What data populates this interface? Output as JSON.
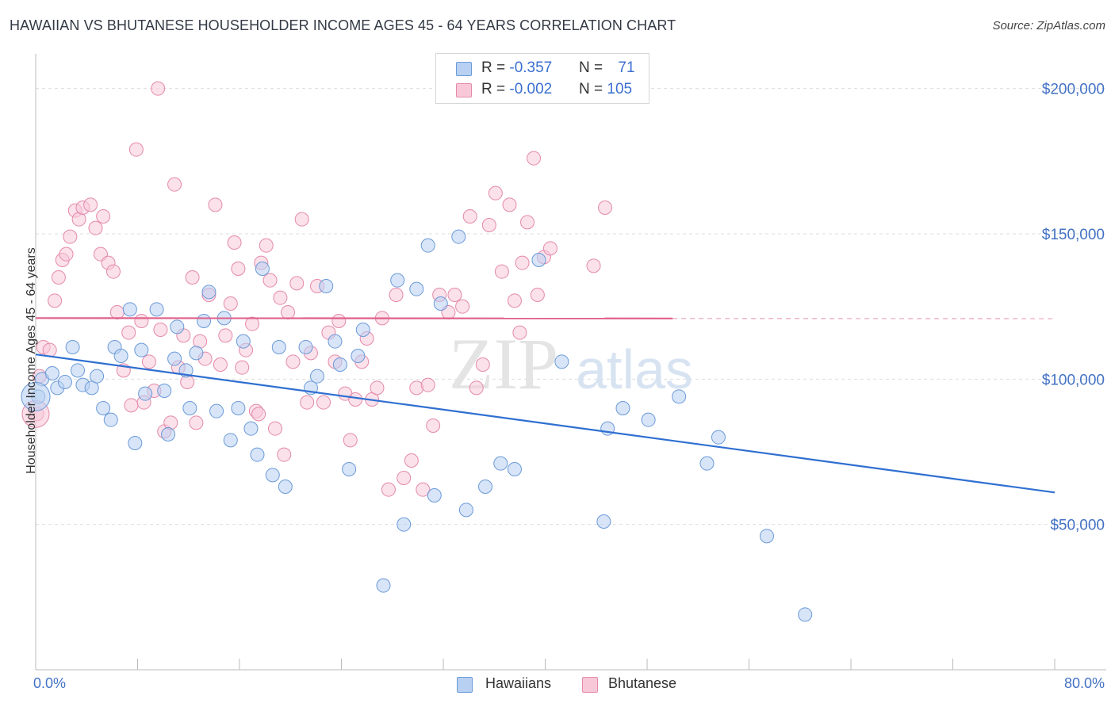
{
  "header": {
    "title": "HAWAIIAN VS BHUTANESE HOUSEHOLDER INCOME AGES 45 - 64 YEARS CORRELATION CHART",
    "source": "Source: ZipAtlas.com"
  },
  "watermark": {
    "zip": "ZIP",
    "atlas": "atlas"
  },
  "legend": {
    "rows": [
      {
        "r_label": "R = ",
        "r_value": "-0.357",
        "n_label": "N = ",
        "n_value": "71"
      },
      {
        "r_label": "R = ",
        "r_value": "-0.002",
        "n_label": "N = ",
        "n_value": "105"
      }
    ]
  },
  "bottom_legend": {
    "hawaiians": "Hawaiians",
    "bhutanese": "Bhutanese"
  },
  "axes": {
    "ylabel": "Householder Income Ages 45 - 64 years",
    "x_min_label": "0.0%",
    "x_max_label": "80.0%",
    "ytick_labels": [
      "$50,000",
      "$100,000",
      "$150,000",
      "$200,000"
    ]
  },
  "colors": {
    "hawaiians_fill": "#b8d0f2",
    "hawaiians_stroke": "#6b9ad8",
    "hawaiians_line": "#2f6fd1",
    "bhutanese_fill": "#f8c8d8",
    "bhutanese_stroke": "#e48aaa",
    "bhutanese_line": "#e0608a",
    "tick_label": "#4472c4",
    "grid": "#dddddd"
  },
  "chart_data": {
    "type": "scatter",
    "title": "HAWAIIAN VS BHUTANESE HOUSEHOLDER INCOME AGES 45 - 64 YEARS CORRELATION CHART",
    "xlabel": "",
    "ylabel": "Householder Income Ages 45 - 64 years",
    "xlim": [
      0,
      80
    ],
    "ylim": [
      0,
      210000
    ],
    "yticks": [
      50000,
      100000,
      150000,
      200000
    ],
    "grid": true,
    "legend_position": "top-center",
    "series": [
      {
        "name": "Hawaiians",
        "r": -0.357,
        "n": 71,
        "trend": {
          "x": [
            0,
            80
          ],
          "y": [
            108500,
            61000
          ],
          "dashed_from_x": null
        },
        "points": [
          [
            0.2,
            94000
          ],
          [
            0.5,
            100000
          ],
          [
            1.3,
            102000
          ],
          [
            1.7,
            97000
          ],
          [
            2.3,
            99000
          ],
          [
            2.9,
            111000
          ],
          [
            3.3,
            103000
          ],
          [
            3.7,
            98000
          ],
          [
            4.4,
            97000
          ],
          [
            4.8,
            101000
          ],
          [
            5.3,
            90000
          ],
          [
            5.9,
            86000
          ],
          [
            6.2,
            111000
          ],
          [
            6.7,
            108000
          ],
          [
            7.4,
            124000
          ],
          [
            7.8,
            78000
          ],
          [
            8.3,
            110000
          ],
          [
            8.6,
            95000
          ],
          [
            9.5,
            124000
          ],
          [
            10.1,
            96000
          ],
          [
            10.4,
            81000
          ],
          [
            10.9,
            107000
          ],
          [
            11.1,
            118000
          ],
          [
            11.8,
            103000
          ],
          [
            12.1,
            90000
          ],
          [
            12.6,
            109000
          ],
          [
            13.2,
            120000
          ],
          [
            13.6,
            130000
          ],
          [
            14.2,
            89000
          ],
          [
            14.8,
            121000
          ],
          [
            15.3,
            79000
          ],
          [
            15.9,
            90000
          ],
          [
            16.3,
            113000
          ],
          [
            16.9,
            83000
          ],
          [
            17.4,
            74000
          ],
          [
            17.8,
            138000
          ],
          [
            18.6,
            67000
          ],
          [
            19.1,
            111000
          ],
          [
            19.6,
            63000
          ],
          [
            21.2,
            111000
          ],
          [
            21.6,
            97000
          ],
          [
            22.1,
            101000
          ],
          [
            22.8,
            132000
          ],
          [
            23.5,
            113000
          ],
          [
            23.9,
            105000
          ],
          [
            24.6,
            69000
          ],
          [
            25.3,
            108000
          ],
          [
            25.7,
            117000
          ],
          [
            27.3,
            29000
          ],
          [
            28.4,
            134000
          ],
          [
            28.9,
            50000
          ],
          [
            29.9,
            131000
          ],
          [
            30.8,
            146000
          ],
          [
            31.3,
            60000
          ],
          [
            31.8,
            126000
          ],
          [
            33.2,
            149000
          ],
          [
            33.8,
            55000
          ],
          [
            35.3,
            63000
          ],
          [
            36.5,
            71000
          ],
          [
            37.6,
            69000
          ],
          [
            39.5,
            141000
          ],
          [
            41.3,
            106000
          ],
          [
            44.6,
            51000
          ],
          [
            44.9,
            83000
          ],
          [
            46.1,
            90000
          ],
          [
            48.1,
            86000
          ],
          [
            50.5,
            94000
          ],
          [
            52.7,
            71000
          ],
          [
            53.6,
            80000
          ],
          [
            57.4,
            46000
          ],
          [
            60.4,
            19000
          ]
        ]
      },
      {
        "name": "Bhutanese",
        "r": -0.002,
        "n": 105,
        "trend": {
          "x": [
            0,
            80
          ],
          "y": [
            121000,
            120800
          ],
          "dashed_from_x": 50
        },
        "points": [
          [
            0.1,
            88000
          ],
          [
            0.3,
            101000
          ],
          [
            0.6,
            111000
          ],
          [
            1.1,
            110000
          ],
          [
            1.5,
            127000
          ],
          [
            1.8,
            135000
          ],
          [
            2.1,
            141000
          ],
          [
            2.4,
            143000
          ],
          [
            2.7,
            149000
          ],
          [
            3.1,
            158000
          ],
          [
            3.4,
            155000
          ],
          [
            3.7,
            159000
          ],
          [
            4.3,
            160000
          ],
          [
            4.7,
            152000
          ],
          [
            5.1,
            143000
          ],
          [
            5.3,
            156000
          ],
          [
            5.7,
            140000
          ],
          [
            6.1,
            137000
          ],
          [
            6.4,
            123000
          ],
          [
            6.9,
            103000
          ],
          [
            7.3,
            116000
          ],
          [
            7.5,
            91000
          ],
          [
            7.9,
            179000
          ],
          [
            8.3,
            120000
          ],
          [
            8.5,
            92000
          ],
          [
            8.9,
            106000
          ],
          [
            9.3,
            96000
          ],
          [
            9.6,
            200000
          ],
          [
            9.8,
            117000
          ],
          [
            10.1,
            82000
          ],
          [
            10.6,
            85000
          ],
          [
            10.9,
            167000
          ],
          [
            11.2,
            104000
          ],
          [
            11.6,
            115000
          ],
          [
            11.9,
            99000
          ],
          [
            12.3,
            135000
          ],
          [
            12.6,
            85000
          ],
          [
            12.9,
            113000
          ],
          [
            13.3,
            107000
          ],
          [
            13.6,
            129000
          ],
          [
            14.1,
            160000
          ],
          [
            14.5,
            105000
          ],
          [
            14.9,
            115000
          ],
          [
            15.3,
            126000
          ],
          [
            15.6,
            147000
          ],
          [
            15.9,
            138000
          ],
          [
            16.2,
            104000
          ],
          [
            16.5,
            110000
          ],
          [
            17.0,
            119000
          ],
          [
            17.3,
            89000
          ],
          [
            17.7,
            140000
          ],
          [
            18.1,
            146000
          ],
          [
            18.4,
            134000
          ],
          [
            18.8,
            83000
          ],
          [
            19.2,
            128000
          ],
          [
            19.5,
            74000
          ],
          [
            19.8,
            123000
          ],
          [
            20.2,
            106000
          ],
          [
            20.5,
            133000
          ],
          [
            20.9,
            155000
          ],
          [
            21.3,
            92000
          ],
          [
            21.6,
            109000
          ],
          [
            22.1,
            132000
          ],
          [
            22.6,
            92000
          ],
          [
            23.0,
            116000
          ],
          [
            23.5,
            106000
          ],
          [
            23.8,
            120000
          ],
          [
            24.3,
            95000
          ],
          [
            24.7,
            79000
          ],
          [
            25.1,
            93000
          ],
          [
            25.6,
            106000
          ],
          [
            26.0,
            114000
          ],
          [
            26.4,
            93000
          ],
          [
            26.8,
            97000
          ],
          [
            27.2,
            121000
          ],
          [
            27.7,
            62000
          ],
          [
            28.3,
            129000
          ],
          [
            28.9,
            66000
          ],
          [
            29.5,
            72000
          ],
          [
            29.9,
            97000
          ],
          [
            30.4,
            62000
          ],
          [
            30.8,
            98000
          ],
          [
            31.2,
            84000
          ],
          [
            31.7,
            129000
          ],
          [
            32.4,
            123000
          ],
          [
            32.9,
            129000
          ],
          [
            33.5,
            125000
          ],
          [
            34.1,
            156000
          ],
          [
            34.6,
            97000
          ],
          [
            35.1,
            105000
          ],
          [
            35.6,
            153000
          ],
          [
            36.1,
            164000
          ],
          [
            36.6,
            137000
          ],
          [
            37.2,
            160000
          ],
          [
            37.6,
            127000
          ],
          [
            38.2,
            140000
          ],
          [
            38.6,
            154000
          ],
          [
            39.1,
            176000
          ],
          [
            39.4,
            129000
          ],
          [
            39.9,
            142000
          ],
          [
            40.4,
            145000
          ],
          [
            38.0,
            116000
          ],
          [
            43.8,
            139000
          ],
          [
            44.7,
            159000
          ],
          [
            17.5,
            88000
          ]
        ]
      }
    ]
  }
}
